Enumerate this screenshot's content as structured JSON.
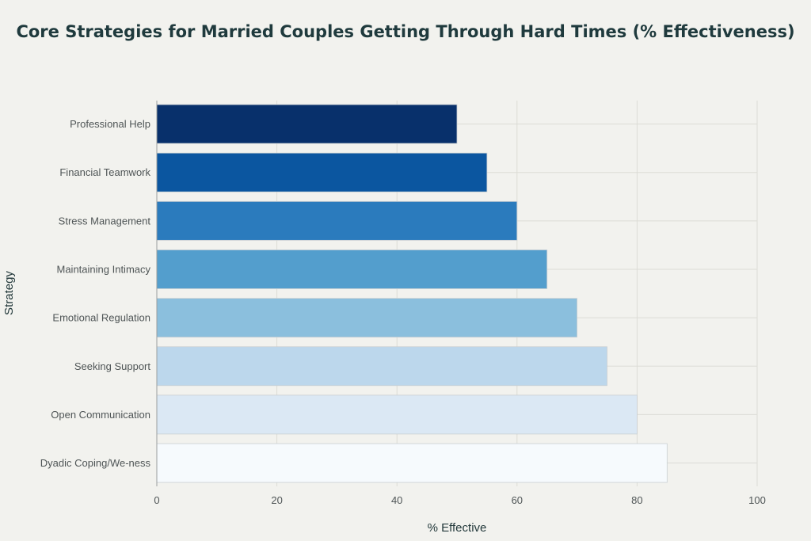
{
  "chart_data": {
    "type": "bar",
    "orientation": "horizontal",
    "title": "Core Strategies for Married Couples Getting Through Hard Times (% Effectiveness)",
    "xlabel": "% Effective",
    "ylabel": "Strategy",
    "xlim": [
      0,
      100
    ],
    "xticks": [
      0,
      20,
      40,
      60,
      80,
      100
    ],
    "grid": true,
    "categories": [
      "Professional Help",
      "Financial Teamwork",
      "Stress Management",
      "Maintaining Intimacy",
      "Emotional Regulation",
      "Seeking Support",
      "Open Communication",
      "Dyadic Coping/We-ness"
    ],
    "values": [
      50,
      55,
      60,
      65,
      70,
      75,
      80,
      85
    ],
    "colors": [
      "#08306b",
      "#0b56a0",
      "#2b7bbd",
      "#539ecd",
      "#8bbfdd",
      "#bcd7ec",
      "#dbe8f4",
      "#f6fafd"
    ]
  }
}
